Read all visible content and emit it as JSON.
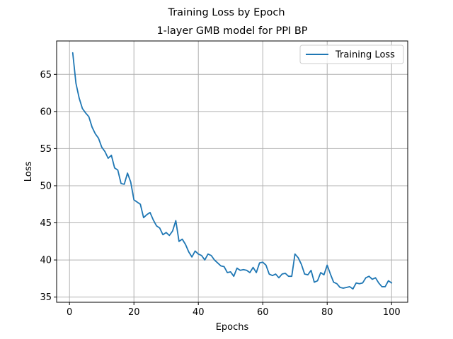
{
  "chart_data": {
    "type": "line",
    "suptitle": "Training Loss by Epoch",
    "title": "1-layer GMB model for PPI BP",
    "xlabel": "Epochs",
    "ylabel": "Loss",
    "xlim": [
      -4.0,
      105.0
    ],
    "ylim": [
      34.3,
      69.5
    ],
    "xticks": [
      0,
      20,
      40,
      60,
      80,
      100
    ],
    "yticks": [
      35,
      40,
      45,
      50,
      55,
      60,
      65
    ],
    "grid": true,
    "legend": "upper right",
    "series": [
      {
        "name": "Training Loss",
        "color": "#1f77b4",
        "x": [
          1,
          2,
          3,
          4,
          5,
          6,
          7,
          8,
          9,
          10,
          11,
          12,
          13,
          14,
          15,
          16,
          17,
          18,
          19,
          20,
          21,
          22,
          23,
          24,
          25,
          26,
          27,
          28,
          29,
          30,
          31,
          32,
          33,
          34,
          35,
          36,
          37,
          38,
          39,
          40,
          41,
          42,
          43,
          44,
          45,
          46,
          47,
          48,
          49,
          50,
          51,
          52,
          53,
          54,
          55,
          56,
          57,
          58,
          59,
          60,
          61,
          62,
          63,
          64,
          65,
          66,
          67,
          68,
          69,
          70,
          71,
          72,
          73,
          74,
          75,
          76,
          77,
          78,
          79,
          80,
          81,
          82,
          83,
          84,
          85,
          86,
          87,
          88,
          89,
          90,
          91,
          92,
          93,
          94,
          95,
          96,
          97,
          98,
          99,
          100
        ],
        "y": [
          67.9,
          63.8,
          61.8,
          60.4,
          59.8,
          59.3,
          57.9,
          57.0,
          56.4,
          55.2,
          54.6,
          53.7,
          54.1,
          52.4,
          52.1,
          50.3,
          50.2,
          51.7,
          50.5,
          48.1,
          47.8,
          47.5,
          45.7,
          46.1,
          46.4,
          45.4,
          44.6,
          44.3,
          43.4,
          43.7,
          43.3,
          43.9,
          45.3,
          42.5,
          42.8,
          42.1,
          41.1,
          40.4,
          41.2,
          40.8,
          40.6,
          40.0,
          40.8,
          40.6,
          40.0,
          39.6,
          39.2,
          39.1,
          38.3,
          38.4,
          37.8,
          38.9,
          38.6,
          38.7,
          38.6,
          38.3,
          39.0,
          38.3,
          39.6,
          39.7,
          39.3,
          38.1,
          37.9,
          38.1,
          37.6,
          38.1,
          38.2,
          37.8,
          37.8,
          40.8,
          40.3,
          39.4,
          38.1,
          38.0,
          38.6,
          37.0,
          37.2,
          38.3,
          38.0,
          39.3,
          38.1,
          37.0,
          36.8,
          36.3,
          36.2,
          36.3,
          36.4,
          36.1,
          36.9,
          36.8,
          36.9,
          37.6,
          37.8,
          37.4,
          37.6,
          36.9,
          36.4,
          36.4,
          37.2,
          36.9
        ]
      }
    ]
  }
}
